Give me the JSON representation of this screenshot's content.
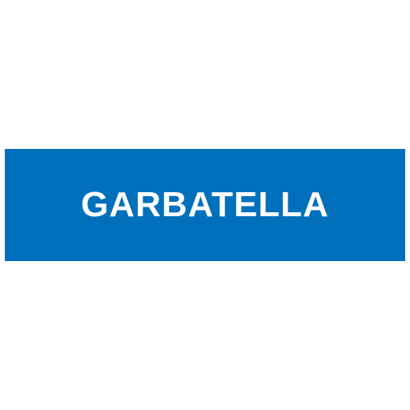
{
  "sign": {
    "label": "GARBATELLA",
    "background_color": "#0070BC",
    "text_color": "#FFFFFF"
  }
}
